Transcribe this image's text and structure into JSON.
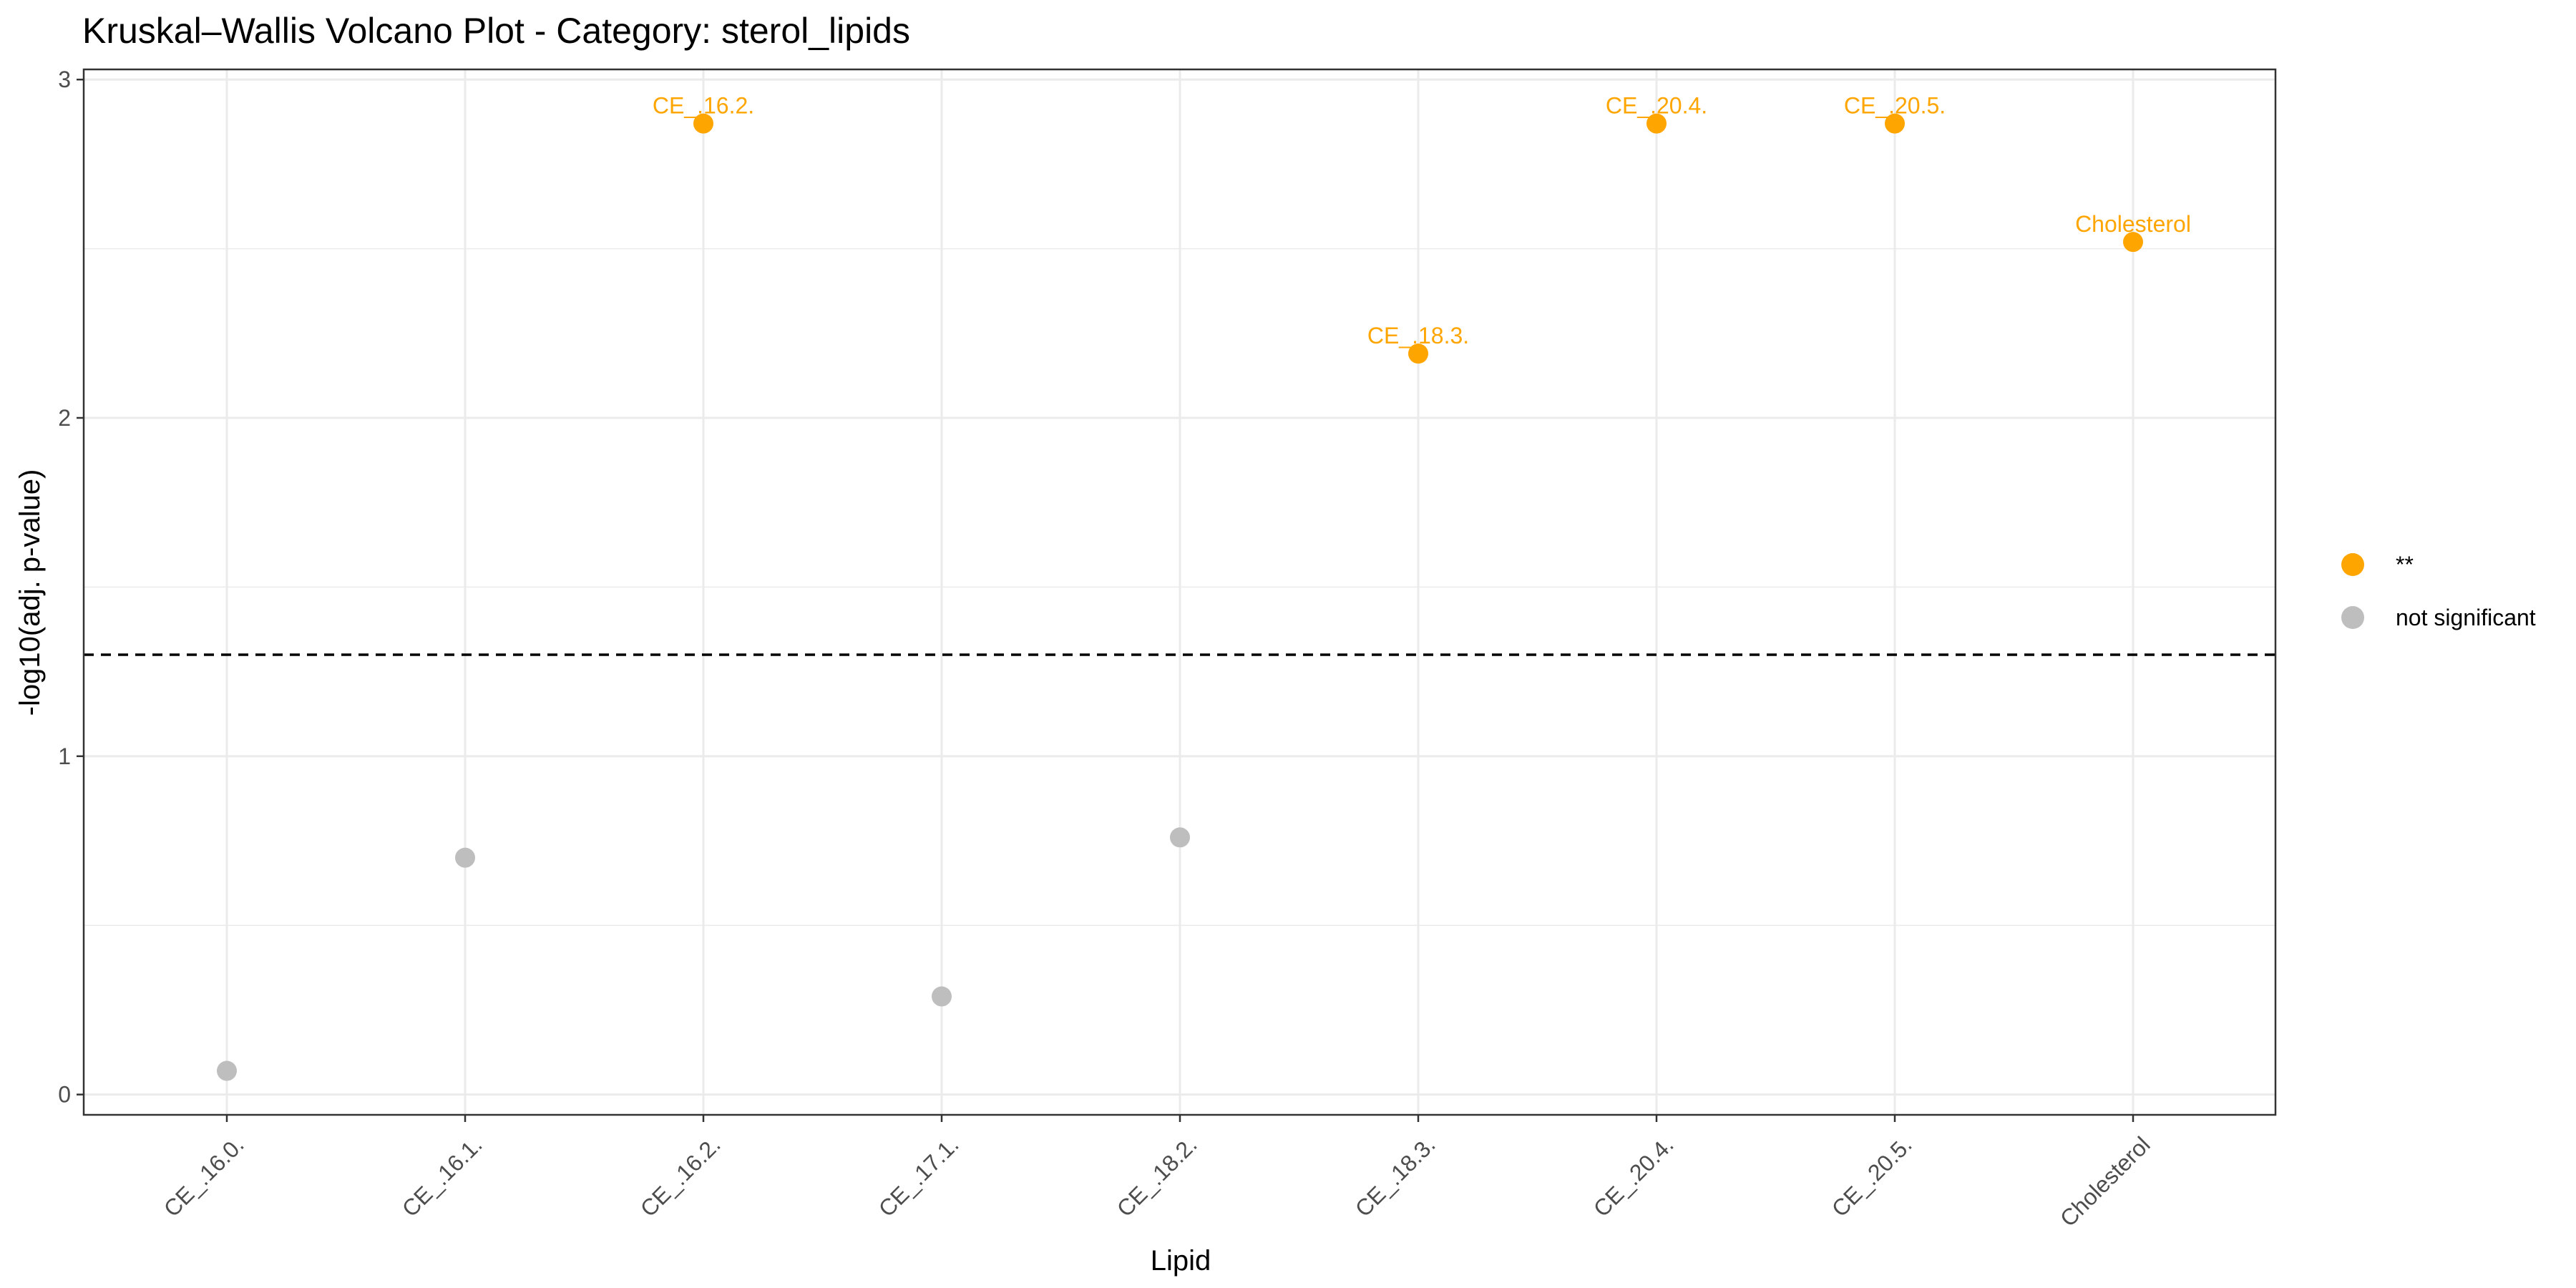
{
  "chart_data": {
    "type": "scatter",
    "title": "Kruskal–Wallis Volcano Plot - Category: sterol_lipids",
    "xlabel": "Lipid",
    "ylabel": "-log10(adj. p-value)",
    "categories": [
      "CE_.16.0.",
      "CE_.16.1.",
      "CE_.16.2.",
      "CE_.17.1.",
      "CE_.18.2.",
      "CE_.18.3.",
      "CE_.20.4.",
      "CE_.20.5.",
      "Cholesterol"
    ],
    "values": [
      0.07,
      0.7,
      2.87,
      0.29,
      0.76,
      2.19,
      2.87,
      2.87,
      2.52
    ],
    "point_labels": [
      "",
      "",
      "CE_.16.2.",
      "",
      "",
      "CE_.18.3.",
      "CE_.20.4.",
      "CE_.20.5.",
      "Cholesterol"
    ],
    "groups": [
      "not significant",
      "not significant",
      "**",
      "not significant",
      "not significant",
      "**",
      "**",
      "**",
      "**"
    ],
    "ylim": [
      -0.06,
      3.03
    ],
    "yticks": [
      0,
      1,
      2,
      3
    ],
    "threshold": 1.3,
    "grid": true,
    "legend": {
      "placement": "right",
      "entries": [
        {
          "label": "**",
          "color": "#FFA500"
        },
        {
          "label": "not significant",
          "color": "#BEBEBE"
        }
      ]
    },
    "colors": {
      "**": "#FFA500",
      "not significant": "#BEBEBE",
      "threshold_line": "#000000",
      "grid_major": "#EBEBEB",
      "panel_border": "#333333"
    }
  }
}
